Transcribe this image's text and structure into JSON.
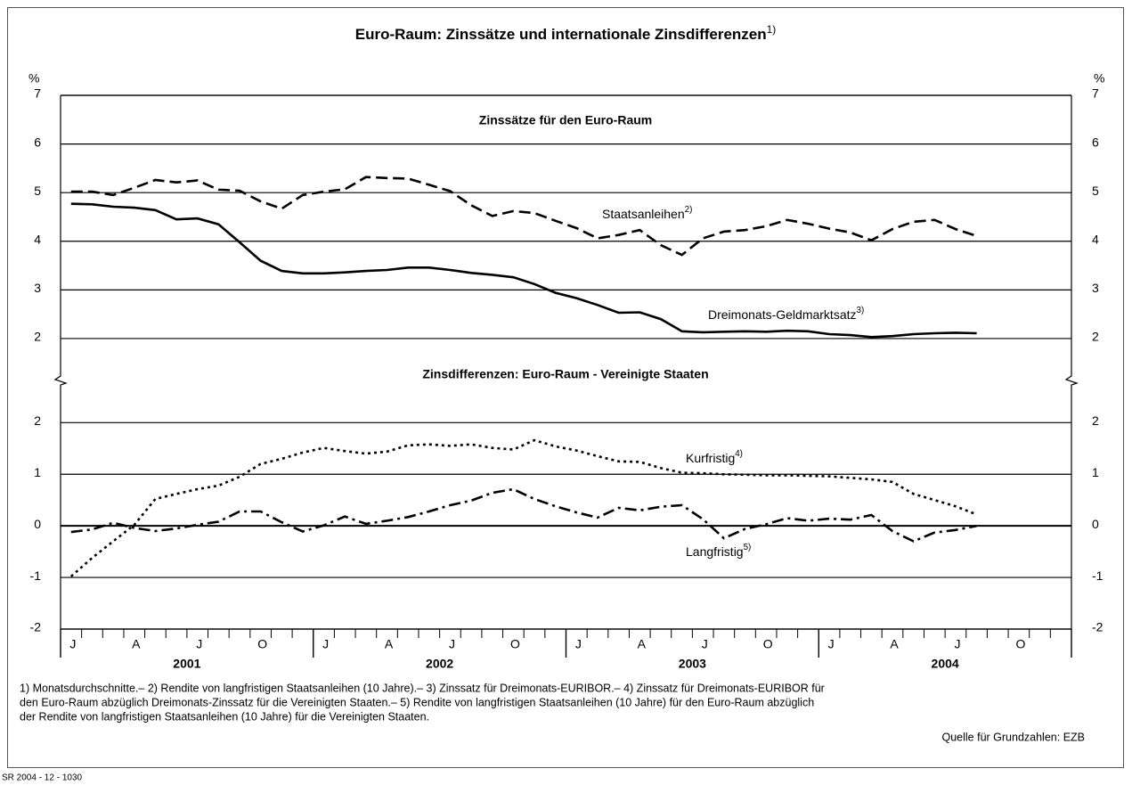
{
  "title": "Euro-Raum: Zinssätze und internationale Zinsdifferenzen",
  "title_note": "1)",
  "unit": "%",
  "x_axis": {
    "categories": [
      "J",
      null,
      null,
      "A",
      null,
      null,
      "J",
      null,
      null,
      "O",
      null,
      null,
      "J",
      null,
      null,
      "A",
      null,
      null,
      "J",
      null,
      null,
      "O",
      null,
      null,
      "J",
      null,
      null,
      "A",
      null,
      null,
      "J",
      null,
      null,
      "O",
      null,
      null,
      "J",
      null,
      null,
      "A",
      null,
      null,
      "J",
      null,
      null,
      "O",
      null,
      null
    ],
    "years": [
      "2001",
      "2002",
      "2003",
      "2004"
    ]
  },
  "chart_data": [
    {
      "type": "line",
      "title": "Zinssätze für den Euro-Raum",
      "ylim": [
        1.12,
        7
      ],
      "yticks": [
        2,
        3,
        4,
        5,
        6,
        7
      ],
      "grid": true,
      "series": [
        {
          "name": "Staatsanleihen",
          "note": "2)",
          "color": "#000000",
          "dash": "dashed",
          "values": [
            5.02,
            5.02,
            4.95,
            5.1,
            5.26,
            5.21,
            5.25,
            5.06,
            5.04,
            4.82,
            4.67,
            4.95,
            5.02,
            5.07,
            5.32,
            5.3,
            5.29,
            5.16,
            5.03,
            4.74,
            4.52,
            4.62,
            4.58,
            4.42,
            4.27,
            4.06,
            4.13,
            4.23,
            3.92,
            3.72,
            4.06,
            4.2,
            4.23,
            4.31,
            4.44,
            4.36,
            4.26,
            4.18,
            4.02,
            4.25,
            4.4,
            4.44,
            4.25,
            4.11,
            null,
            null,
            null,
            null
          ]
        },
        {
          "name": "Dreimonats-Geldmarktsatz",
          "note": "3)",
          "color": "#000000",
          "dash": "solid",
          "values": [
            4.77,
            4.76,
            4.71,
            4.69,
            4.64,
            4.45,
            4.47,
            4.35,
            3.98,
            3.6,
            3.39,
            3.34,
            3.34,
            3.36,
            3.39,
            3.41,
            3.46,
            3.46,
            3.41,
            3.35,
            3.31,
            3.26,
            3.12,
            2.94,
            2.83,
            2.69,
            2.53,
            2.54,
            2.4,
            2.15,
            2.13,
            2.14,
            2.15,
            2.14,
            2.16,
            2.15,
            2.09,
            2.07,
            2.03,
            2.05,
            2.09,
            2.11,
            2.12,
            2.11,
            null,
            null,
            null,
            null
          ]
        }
      ]
    },
    {
      "type": "line",
      "title": "Zinsdifferenzen: Euro-Raum - Vereinigte Staaten",
      "ylim": [
        -2,
        2.8
      ],
      "yticks": [
        -2,
        -1,
        0,
        1,
        2
      ],
      "grid": true,
      "series": [
        {
          "name": "Kurfristig",
          "note": "4)",
          "color": "#000000",
          "dash": "dotted",
          "values": [
            -0.98,
            -0.62,
            -0.3,
            0.02,
            0.52,
            0.62,
            0.71,
            0.78,
            0.95,
            1.2,
            1.3,
            1.42,
            1.51,
            1.45,
            1.4,
            1.44,
            1.56,
            1.58,
            1.55,
            1.58,
            1.51,
            1.48,
            1.66,
            1.54,
            1.46,
            1.35,
            1.25,
            1.24,
            1.12,
            1.03,
            1.02,
            1.0,
            0.99,
            0.98,
            0.98,
            0.97,
            0.96,
            0.93,
            0.9,
            0.85,
            0.62,
            0.5,
            0.38,
            0.22,
            null,
            null,
            null,
            null
          ]
        },
        {
          "name": "Langfristig",
          "note": "5)",
          "color": "#000000",
          "dash": "dashdot",
          "values": [
            -0.12,
            -0.07,
            0.06,
            -0.04,
            -0.1,
            -0.05,
            0.02,
            0.08,
            0.28,
            0.28,
            0.07,
            -0.11,
            0.01,
            0.18,
            0.04,
            0.1,
            0.17,
            0.28,
            0.4,
            0.49,
            0.64,
            0.71,
            0.52,
            0.38,
            0.26,
            0.16,
            0.35,
            0.3,
            0.37,
            0.4,
            0.13,
            -0.24,
            -0.06,
            0.03,
            0.15,
            0.1,
            0.14,
            0.12,
            0.21,
            -0.1,
            -0.3,
            -0.13,
            -0.08,
            0.0,
            null,
            null,
            null,
            null
          ]
        }
      ]
    }
  ],
  "footnotes": [
    "1) Monatsdurchschnitte.– 2) Rendite von langfristigen Staatsanleihen (10 Jahre).– 3) Zinssatz für Dreimonats-EURIBOR.– 4) Zinssatz für Dreimonats-EURIBOR für",
    "den Euro-Raum abzüglich Dreimonats-Zinssatz für die Vereinigten Staaten.– 5) Rendite von langfristigen Staatsanleihen (10 Jahre) für den Euro-Raum abzüglich",
    "der Rendite von langfristigen Staatsanleihen (10 Jahre) für die Vereinigten Staaten."
  ],
  "source": "Quelle für Grundzahlen: EZB",
  "code": "SR 2004 - 12 - 1030"
}
